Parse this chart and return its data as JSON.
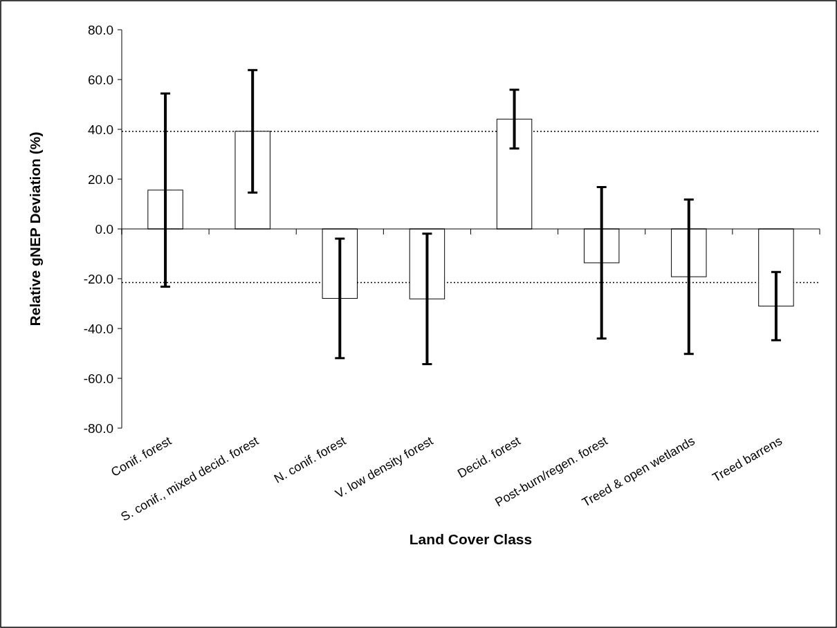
{
  "chart_data": {
    "type": "bar",
    "xlabel": "Land Cover Class",
    "ylabel": "Relative gNEP Deviation (%)",
    "categories": [
      "Conif. forest",
      "S. conif., mixed decid. forest",
      "N. conif. forest",
      "V. low density forest",
      "Decid. forest",
      "Post-burn/regen. forest",
      "Treed & open wetlands",
      "Treed barrens"
    ],
    "values": [
      15.6,
      39.2,
      -27.9,
      -28.1,
      44.1,
      -13.6,
      -19.2,
      -31.0
    ],
    "errors": [
      38.8,
      24.6,
      24.0,
      26.2,
      11.8,
      30.4,
      31.0,
      13.7
    ],
    "color": "#ffffff",
    "ylim": [
      -80,
      80
    ],
    "yticks": [
      {
        "value": -80,
        "label": "-80.0"
      },
      {
        "value": -60,
        "label": "-60.0"
      },
      {
        "value": -40,
        "label": "-40.0"
      },
      {
        "value": -20,
        "label": "-20.0"
      },
      {
        "value": 0,
        "label": "0.0"
      },
      {
        "value": 20,
        "label": "20.0"
      },
      {
        "value": 40,
        "label": "40.0"
      },
      {
        "value": 60,
        "label": "60.0"
      },
      {
        "value": 80,
        "label": "80.0"
      }
    ],
    "ref_lines": [
      {
        "axis": "y",
        "value": 39.2,
        "line_style": "dotted"
      },
      {
        "axis": "y",
        "value": -21.5,
        "line_style": "dotted"
      }
    ]
  }
}
